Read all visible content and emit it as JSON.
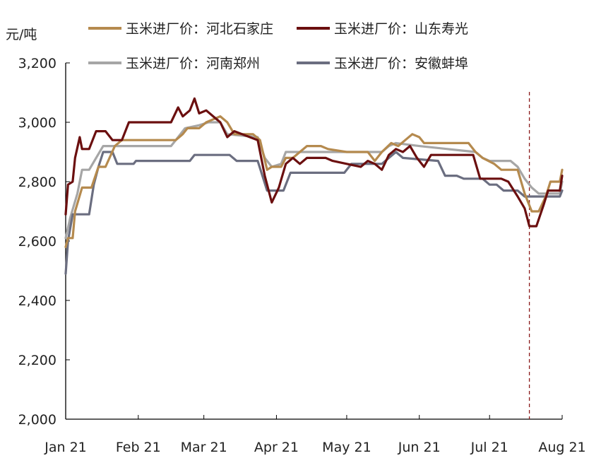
{
  "chart_data": {
    "type": "line",
    "ylabel": "元/吨",
    "ylim": [
      2000,
      3200
    ],
    "yticks": [
      "2,000",
      "2,200",
      "2,400",
      "2,600",
      "2,800",
      "3,000",
      "3,200"
    ],
    "ytick_values": [
      2000,
      2200,
      2400,
      2600,
      2800,
      3000,
      3200
    ],
    "x_tick_labels": [
      "Jan 21",
      "Feb 21",
      "Mar 21",
      "Apr 21",
      "May 21",
      "Jun 21",
      "Jul 21",
      "Aug 21"
    ],
    "x_tick_dates": [
      "2021-01-01",
      "2021-02-01",
      "2021-03-01",
      "2021-04-01",
      "2021-05-01",
      "2021-06-01",
      "2021-07-01",
      "2021-08-01"
    ],
    "xlim": [
      "2021-01-01",
      "2021-08-01"
    ],
    "grid": false,
    "legend_position": "top",
    "reference_line": {
      "date": "2021-07-18",
      "style": "dashed",
      "color": "#8b1a1a"
    },
    "series": [
      {
        "name": "玉米进厂价：河北石家庄",
        "color": "#b58a4e",
        "points": [
          [
            "2021-01-01",
            2580
          ],
          [
            "2021-01-02",
            2610
          ],
          [
            "2021-01-04",
            2610
          ],
          [
            "2021-01-05",
            2700
          ],
          [
            "2021-01-08",
            2780
          ],
          [
            "2021-01-12",
            2780
          ],
          [
            "2021-01-15",
            2850
          ],
          [
            "2021-01-18",
            2850
          ],
          [
            "2021-01-22",
            2920
          ],
          [
            "2021-01-25",
            2940
          ],
          [
            "2021-02-17",
            2940
          ],
          [
            "2021-02-20",
            2960
          ],
          [
            "2021-02-22",
            2980
          ],
          [
            "2021-02-27",
            2980
          ],
          [
            "2021-03-02",
            3000
          ],
          [
            "2021-03-05",
            3010
          ],
          [
            "2021-03-08",
            3020
          ],
          [
            "2021-03-11",
            3000
          ],
          [
            "2021-03-14",
            2960
          ],
          [
            "2021-03-22",
            2960
          ],
          [
            "2021-03-25",
            2940
          ],
          [
            "2021-03-28",
            2840
          ],
          [
            "2021-03-30",
            2850
          ],
          [
            "2021-04-03",
            2850
          ],
          [
            "2021-04-05",
            2880
          ],
          [
            "2021-04-08",
            2880
          ],
          [
            "2021-04-11",
            2900
          ],
          [
            "2021-04-14",
            2920
          ],
          [
            "2021-04-20",
            2920
          ],
          [
            "2021-04-23",
            2910
          ],
          [
            "2021-05-01",
            2900
          ],
          [
            "2021-05-10",
            2900
          ],
          [
            "2021-05-13",
            2870
          ],
          [
            "2021-05-16",
            2900
          ],
          [
            "2021-05-20",
            2930
          ],
          [
            "2021-05-23",
            2920
          ],
          [
            "2021-05-26",
            2940
          ],
          [
            "2021-05-29",
            2960
          ],
          [
            "2021-06-01",
            2950
          ],
          [
            "2021-06-03",
            2930
          ],
          [
            "2021-06-22",
            2930
          ],
          [
            "2021-06-25",
            2900
          ],
          [
            "2021-06-28",
            2880
          ],
          [
            "2021-07-03",
            2860
          ],
          [
            "2021-07-06",
            2840
          ],
          [
            "2021-07-13",
            2840
          ],
          [
            "2021-07-16",
            2760
          ],
          [
            "2021-07-19",
            2700
          ],
          [
            "2021-07-22",
            2700
          ],
          [
            "2021-07-25",
            2750
          ],
          [
            "2021-07-27",
            2800
          ],
          [
            "2021-07-31",
            2800
          ],
          [
            "2021-08-01",
            2840
          ]
        ]
      },
      {
        "name": "玉米进厂价：山东寿光",
        "color": "#6b0f0f",
        "points": [
          [
            "2021-01-01",
            2690
          ],
          [
            "2021-01-02",
            2790
          ],
          [
            "2021-01-04",
            2800
          ],
          [
            "2021-01-05",
            2880
          ],
          [
            "2021-01-07",
            2950
          ],
          [
            "2021-01-08",
            2910
          ],
          [
            "2021-01-11",
            2910
          ],
          [
            "2021-01-14",
            2970
          ],
          [
            "2021-01-18",
            2970
          ],
          [
            "2021-01-21",
            2940
          ],
          [
            "2021-01-25",
            2940
          ],
          [
            "2021-01-28",
            3000
          ],
          [
            "2021-02-15",
            3000
          ],
          [
            "2021-02-18",
            3050
          ],
          [
            "2021-02-20",
            3020
          ],
          [
            "2021-02-23",
            3040
          ],
          [
            "2021-02-25",
            3080
          ],
          [
            "2021-02-27",
            3030
          ],
          [
            "2021-03-02",
            3040
          ],
          [
            "2021-03-05",
            3020
          ],
          [
            "2021-03-08",
            3000
          ],
          [
            "2021-03-11",
            2950
          ],
          [
            "2021-03-14",
            2970
          ],
          [
            "2021-03-24",
            2940
          ],
          [
            "2021-03-27",
            2820
          ],
          [
            "2021-03-30",
            2730
          ],
          [
            "2021-04-02",
            2780
          ],
          [
            "2021-04-05",
            2860
          ],
          [
            "2021-04-08",
            2880
          ],
          [
            "2021-04-11",
            2860
          ],
          [
            "2021-04-14",
            2880
          ],
          [
            "2021-04-22",
            2880
          ],
          [
            "2021-04-25",
            2870
          ],
          [
            "2021-05-01",
            2860
          ],
          [
            "2021-05-07",
            2850
          ],
          [
            "2021-05-10",
            2870
          ],
          [
            "2021-05-13",
            2860
          ],
          [
            "2021-05-16",
            2840
          ],
          [
            "2021-05-19",
            2890
          ],
          [
            "2021-05-22",
            2910
          ],
          [
            "2021-05-25",
            2900
          ],
          [
            "2021-05-28",
            2920
          ],
          [
            "2021-05-31",
            2880
          ],
          [
            "2021-06-03",
            2850
          ],
          [
            "2021-06-06",
            2890
          ],
          [
            "2021-06-09",
            2890
          ],
          [
            "2021-06-24",
            2890
          ],
          [
            "2021-06-27",
            2810
          ],
          [
            "2021-07-06",
            2810
          ],
          [
            "2021-07-09",
            2800
          ],
          [
            "2021-07-13",
            2750
          ],
          [
            "2021-07-16",
            2710
          ],
          [
            "2021-07-18",
            2650
          ],
          [
            "2021-07-21",
            2650
          ],
          [
            "2021-07-24",
            2720
          ],
          [
            "2021-07-26",
            2770
          ],
          [
            "2021-07-31",
            2770
          ],
          [
            "2021-08-01",
            2820
          ]
        ]
      },
      {
        "name": "玉米进厂价：河南郑州",
        "color": "#a6a6a6",
        "points": [
          [
            "2021-01-01",
            2610
          ],
          [
            "2021-01-03",
            2680
          ],
          [
            "2021-01-06",
            2760
          ],
          [
            "2021-01-08",
            2840
          ],
          [
            "2021-01-11",
            2840
          ],
          [
            "2021-01-14",
            2880
          ],
          [
            "2021-01-17",
            2920
          ],
          [
            "2021-02-15",
            2920
          ],
          [
            "2021-02-18",
            2950
          ],
          [
            "2021-02-21",
            2980
          ],
          [
            "2021-02-27",
            2990
          ],
          [
            "2021-03-03",
            3000
          ],
          [
            "2021-03-08",
            3000
          ],
          [
            "2021-03-11",
            2960
          ],
          [
            "2021-03-24",
            2950
          ],
          [
            "2021-03-27",
            2880
          ],
          [
            "2021-03-30",
            2850
          ],
          [
            "2021-04-03",
            2860
          ],
          [
            "2021-04-05",
            2900
          ],
          [
            "2021-05-16",
            2900
          ],
          [
            "2021-05-19",
            2920
          ],
          [
            "2021-05-22",
            2930
          ],
          [
            "2021-06-01",
            2920
          ],
          [
            "2021-06-25",
            2900
          ],
          [
            "2021-06-28",
            2880
          ],
          [
            "2021-07-01",
            2870
          ],
          [
            "2021-07-10",
            2870
          ],
          [
            "2021-07-13",
            2850
          ],
          [
            "2021-07-16",
            2810
          ],
          [
            "2021-07-19",
            2780
          ],
          [
            "2021-07-22",
            2760
          ],
          [
            "2021-07-31",
            2760
          ],
          [
            "2021-08-01",
            2800
          ]
        ]
      },
      {
        "name": "玉米进厂价：安徽蚌埠",
        "color": "#6b6e80",
        "points": [
          [
            "2021-01-01",
            2490
          ],
          [
            "2021-01-02",
            2600
          ],
          [
            "2021-01-04",
            2690
          ],
          [
            "2021-01-11",
            2690
          ],
          [
            "2021-01-13",
            2790
          ],
          [
            "2021-01-15",
            2850
          ],
          [
            "2021-01-17",
            2900
          ],
          [
            "2021-01-21",
            2900
          ],
          [
            "2021-01-23",
            2860
          ],
          [
            "2021-01-30",
            2860
          ],
          [
            "2021-01-31",
            2870
          ],
          [
            "2021-02-23",
            2870
          ],
          [
            "2021-02-25",
            2890
          ],
          [
            "2021-03-12",
            2890
          ],
          [
            "2021-03-15",
            2870
          ],
          [
            "2021-03-24",
            2870
          ],
          [
            "2021-03-28",
            2770
          ],
          [
            "2021-04-04",
            2770
          ],
          [
            "2021-04-07",
            2830
          ],
          [
            "2021-04-30",
            2830
          ],
          [
            "2021-05-03",
            2860
          ],
          [
            "2021-05-16",
            2860
          ],
          [
            "2021-05-19",
            2880
          ],
          [
            "2021-05-22",
            2900
          ],
          [
            "2021-05-25",
            2880
          ],
          [
            "2021-06-09",
            2870
          ],
          [
            "2021-06-12",
            2820
          ],
          [
            "2021-06-17",
            2820
          ],
          [
            "2021-06-20",
            2810
          ],
          [
            "2021-06-28",
            2810
          ],
          [
            "2021-07-01",
            2790
          ],
          [
            "2021-07-04",
            2790
          ],
          [
            "2021-07-07",
            2770
          ],
          [
            "2021-07-13",
            2770
          ],
          [
            "2021-07-16",
            2750
          ],
          [
            "2021-07-31",
            2750
          ],
          [
            "2021-08-01",
            2770
          ]
        ]
      }
    ]
  }
}
